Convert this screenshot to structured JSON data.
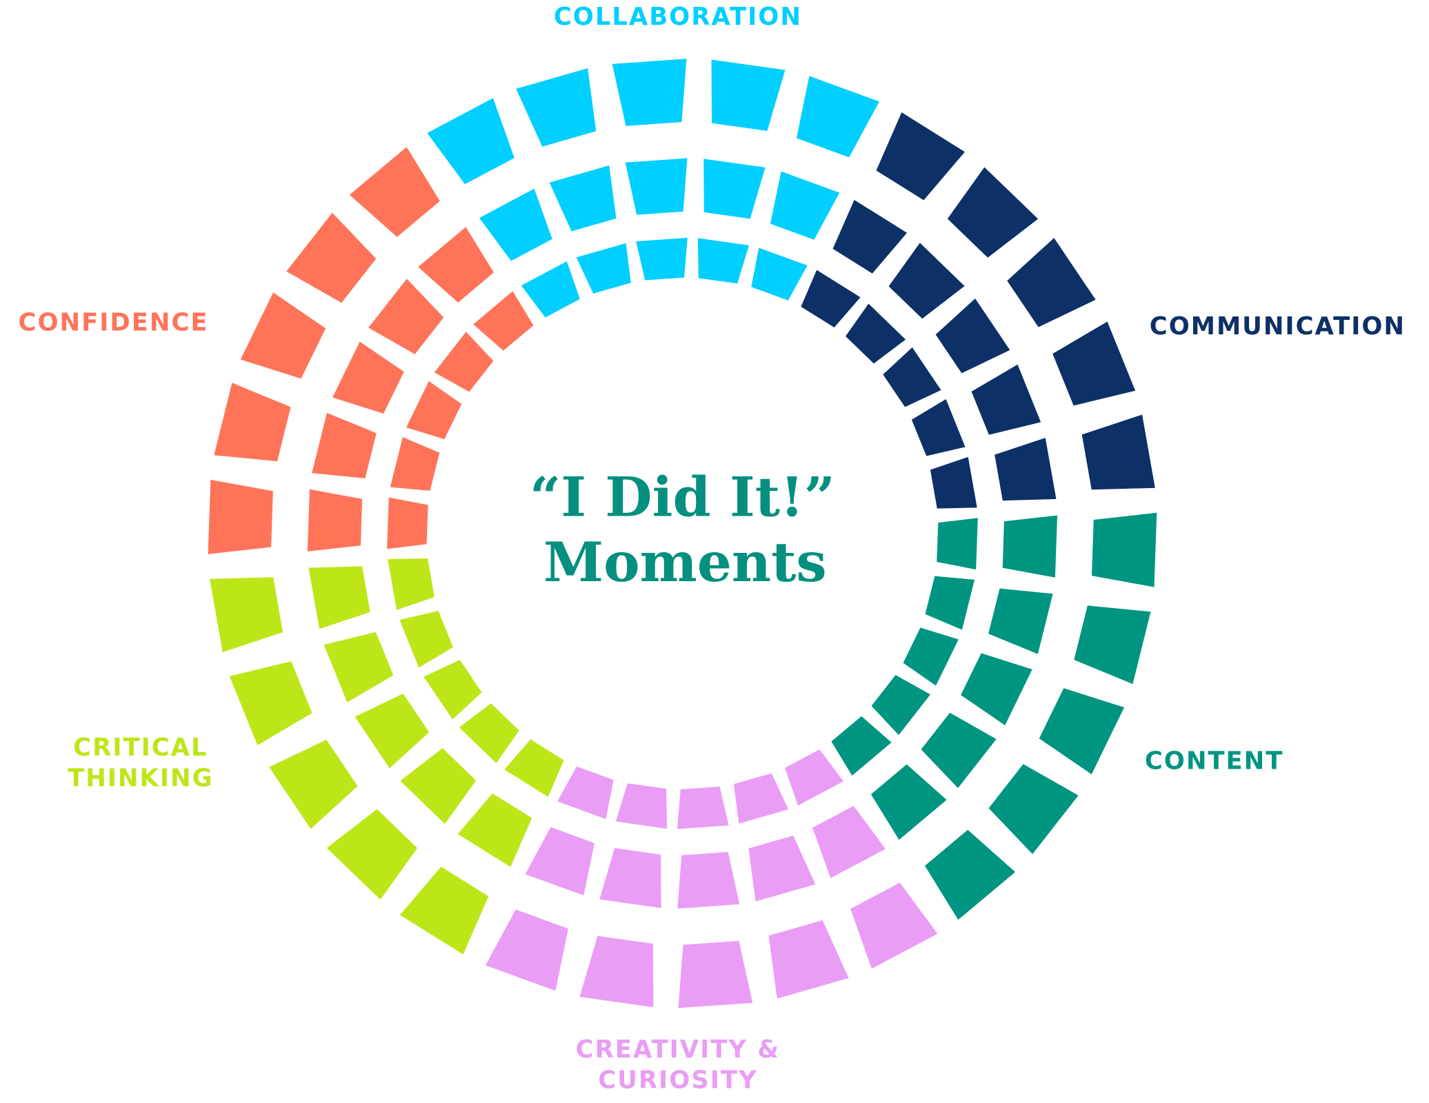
{
  "center_title": {
    "lines": [
      "“I Did It!”",
      "Moments"
    ]
  },
  "sectors": [
    {
      "label_lines": [
        "COLLABORATION"
      ]
    },
    {
      "label_lines": [
        "COMMUNICATION"
      ]
    },
    {
      "label_lines": [
        "CONTENT"
      ]
    },
    {
      "label_lines": [
        "CREATIVITY &",
        "CURIOSITY"
      ]
    },
    {
      "label_lines": [
        "CRITICAL",
        "THINKING"
      ]
    },
    {
      "label_lines": [
        "CONFIDENCE"
      ]
    }
  ]
}
